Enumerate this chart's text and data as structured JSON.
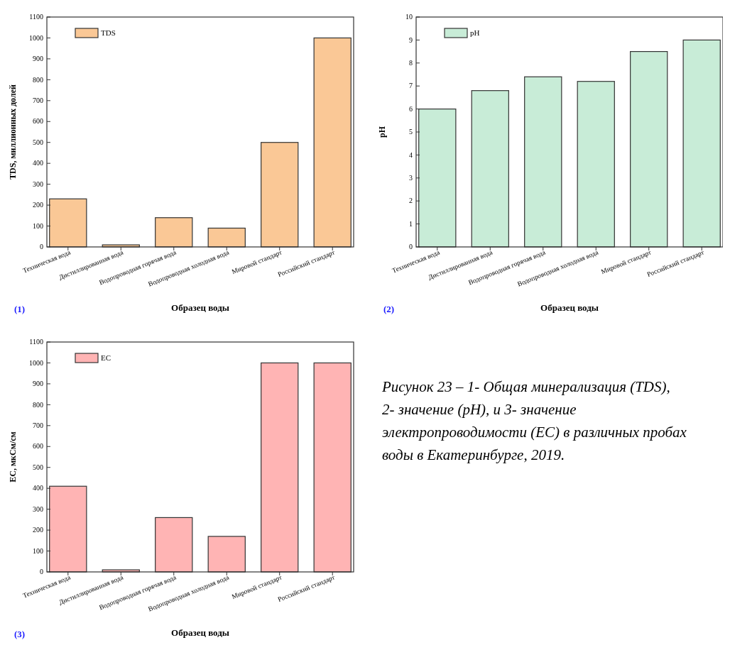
{
  "chart_data": [
    {
      "type": "bar",
      "categories": [
        "Техническая вода",
        "Дистиллированная вода",
        "Водопроводная горячая вода",
        "Водопроводная холодная вода",
        "Мировой стандарт",
        "Российский стандарт"
      ],
      "series": [
        {
          "name": "TDS",
          "color": "#fac896",
          "values": [
            230,
            10,
            140,
            90,
            500,
            1000
          ]
        }
      ],
      "ylim": [
        0,
        1100
      ],
      "yticks": [
        0,
        100,
        200,
        300,
        400,
        500,
        600,
        700,
        800,
        900,
        1000,
        1100
      ],
      "xlabel": "Образец воды",
      "ylabel": "TDS, миллионных долей",
      "legend": "top left",
      "annotations": [
        "(1)"
      ]
    },
    {
      "type": "bar",
      "categories": [
        "Техническая вода",
        "Дистиллированная вода",
        "Водопроводная горячая вода",
        "Водопроводная холодная вода",
        "Мировой стандарт",
        "Российский стандарт"
      ],
      "series": [
        {
          "name": "pH",
          "color": "#c8ecd7",
          "values": [
            6,
            6.8,
            7.4,
            7.2,
            8.5,
            9
          ]
        }
      ],
      "ylim": [
        0,
        10
      ],
      "yticks": [
        0,
        1,
        2,
        3,
        4,
        5,
        6,
        7,
        8,
        9,
        10
      ],
      "xlabel": "Образец воды",
      "ylabel": "pH",
      "legend": "top left",
      "annotations": [
        "(2)"
      ]
    },
    {
      "type": "bar",
      "categories": [
        "Техническая вода",
        "Дистиллированная вода",
        "Водопроводная горячая вода",
        "Водопроводная холодная вода",
        "Мировой стандарт",
        "Российский стандарт"
      ],
      "series": [
        {
          "name": "EC",
          "color": "#ffb4b4",
          "values": [
            410,
            10,
            260,
            170,
            1000,
            1000
          ]
        }
      ],
      "ylim": [
        0,
        1100
      ],
      "yticks": [
        0,
        100,
        200,
        300,
        400,
        500,
        600,
        700,
        800,
        900,
        1000,
        1100
      ],
      "xlabel": "Образец воды",
      "ylabel": "EC, мкСм/см",
      "legend": "top left",
      "annotations": [
        "(3)"
      ]
    },
    {
      "type": "other",
      "title": "Рисунок 23 – 1- Общая минерализация (TDS), 2- значение (pH), и 3- значение электропроводимости (EC) в различных пробах воды в Екатеринбурге, 2019."
    }
  ]
}
